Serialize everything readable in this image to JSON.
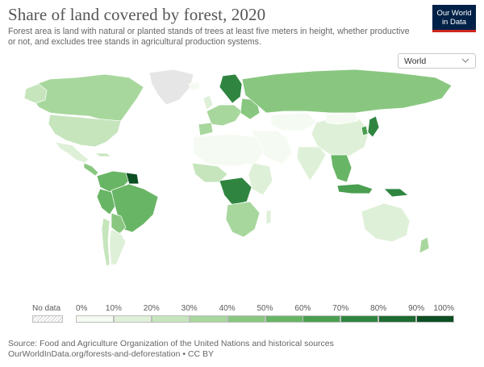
{
  "header": {
    "title": "Share of land covered by forest, 2020",
    "subtitle": "Forest area is land with natural or planted stands of trees at least five meters in height, whether productive or not, and excludes tree stands in agricultural production systems.",
    "logo_line1": "Our World",
    "logo_line2": "in Data"
  },
  "region_select": {
    "value": "World"
  },
  "legend": {
    "nodata_label": "No data",
    "ticks": [
      "0%",
      "10%",
      "20%",
      "30%",
      "40%",
      "50%",
      "60%",
      "70%",
      "80%",
      "90%",
      "100%"
    ],
    "colors": [
      "#f5fbf2",
      "#dff0d8",
      "#c6e5bd",
      "#a8d79d",
      "#89c780",
      "#69b566",
      "#4a9f50",
      "#2f8540",
      "#1d6b31",
      "#0c4f22"
    ]
  },
  "source": {
    "line1": "Source: Food and Agriculture Organization of the United Nations and historical sources",
    "line2": "OurWorldInData.org/forests-and-deforestation • CC BY"
  },
  "colors": {
    "nodata": "#e6e6e6",
    "border": "#ffffff"
  }
}
